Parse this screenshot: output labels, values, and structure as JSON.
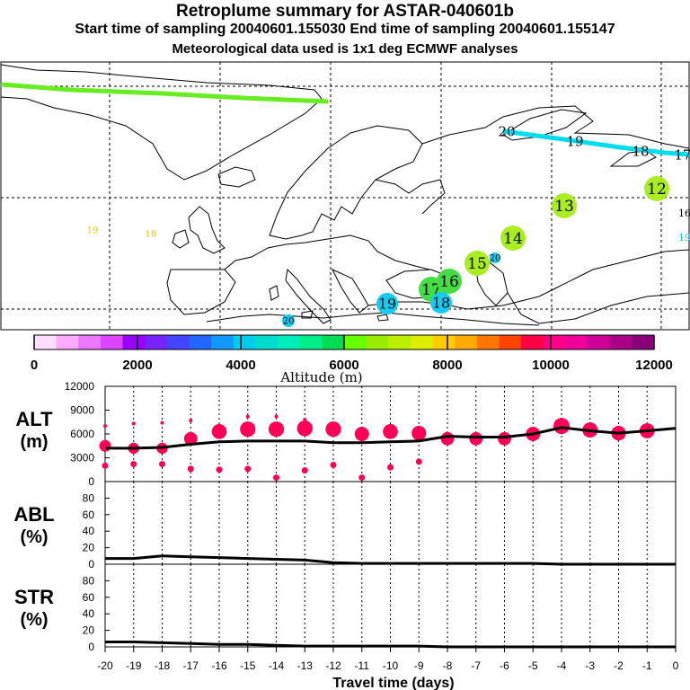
{
  "header": {
    "title": "Retroplume summary for ASTAR-040601b",
    "sampling": "Start time of sampling 20040601.155030     End time of sampling 20040601.155147",
    "meteo": "Meteorological data used is 1x1 deg ECMWF analyses"
  },
  "colors": {
    "green_track": "#66ee22",
    "cyan_track": "#00ddee",
    "marker_red": "#ff0055",
    "lime": "#aaee22",
    "green_mid": "#44dd44",
    "cyan": "#11ccee"
  },
  "map": {
    "labels": [
      {
        "text": "20",
        "kind": "plain"
      },
      {
        "text": "19",
        "kind": "plain"
      },
      {
        "text": "18",
        "kind": "plain"
      },
      {
        "text": "17",
        "kind": "plain"
      },
      {
        "text": "16",
        "kind": "plain"
      },
      {
        "text": "19",
        "kind": "plain"
      },
      {
        "text": "19",
        "kind": "plain"
      },
      {
        "text": "18",
        "kind": "plain"
      },
      {
        "text": "12",
        "kind": "circle"
      },
      {
        "text": "13",
        "kind": "circle"
      },
      {
        "text": "14",
        "kind": "circle"
      },
      {
        "text": "15",
        "kind": "circle"
      },
      {
        "text": "20",
        "kind": "small"
      },
      {
        "text": "17",
        "kind": "circle"
      },
      {
        "text": "16",
        "kind": "circle"
      },
      {
        "text": "19",
        "kind": "circle"
      },
      {
        "text": "18",
        "kind": "circle"
      },
      {
        "text": "20",
        "kind": "small"
      }
    ]
  },
  "colorbar": {
    "colors": [
      "#ffddff",
      "#ffaaff",
      "#ee77ff",
      "#dd44ff",
      "#9900ff",
      "#7722ff",
      "#4444ff",
      "#2266ff",
      "#1199ff",
      "#00ccee",
      "#00ddcc",
      "#00eebb",
      "#00ee88",
      "#00dd55",
      "#66ff00",
      "#99ee00",
      "#bbee00",
      "#ddee00",
      "#ffcc00",
      "#ffaa00",
      "#ff7700",
      "#ff4400",
      "#ff0044",
      "#ff0088",
      "#ee0099",
      "#cc0099",
      "#aa0088",
      "#880077"
    ],
    "tick_labels": [
      "0",
      "2000",
      "4000",
      "6000",
      "8000",
      "10000",
      "12000"
    ],
    "label": "Altitude (m)"
  },
  "chart_data": {
    "type": "line",
    "x": [
      -20,
      -19,
      -18,
      -17,
      -16,
      -15,
      -14,
      -13,
      -12,
      -11,
      -10,
      -9,
      -8,
      -7,
      -6,
      -5,
      -4,
      -3,
      -2,
      -1,
      0
    ],
    "xlabel": "Travel time (days)",
    "x_tick_labels": [
      "-20",
      "-19",
      "-18",
      "-17",
      "-16",
      "-15",
      "-14",
      "-13",
      "-12",
      "-11",
      "-10",
      "-9",
      "-8",
      "-7",
      "-6",
      "-5",
      "-4",
      "-3",
      "-2",
      "-1",
      "0"
    ],
    "xlim": [
      -20,
      0
    ],
    "panels": [
      {
        "name": "ALT",
        "ylabel": "ALT",
        "yunit": "(m)",
        "ylim": [
          0,
          12000
        ],
        "yticks": [
          "0",
          "3000",
          "6000",
          "9000",
          "12000"
        ],
        "mean": [
          4200,
          4200,
          4300,
          4700,
          5000,
          5100,
          5100,
          5100,
          4900,
          4900,
          5000,
          5100,
          5700,
          5600,
          5600,
          6000,
          6800,
          6400,
          6100,
          6400,
          6700
        ],
        "marker_major": [
          4500,
          4200,
          4200,
          5400,
          6300,
          6600,
          6600,
          6700,
          6600,
          6000,
          6300,
          6100,
          5400,
          5400,
          5400,
          6000,
          7000,
          6500,
          6100,
          6400,
          null
        ],
        "marker_upper": [
          7000,
          7300,
          7400,
          7700,
          null,
          8200,
          8200,
          7800,
          null,
          null,
          null,
          null,
          null,
          null,
          null,
          null,
          null,
          null,
          null,
          null,
          null
        ],
        "marker_lower": [
          2000,
          2200,
          2200,
          1600,
          1500,
          1600,
          500,
          1400,
          2100,
          500,
          1800,
          2500,
          null,
          null,
          null,
          null,
          null,
          null,
          null,
          null,
          null
        ]
      },
      {
        "name": "ABL",
        "ylabel": "ABL",
        "yunit": "(%)",
        "ylim": [
          0,
          100
        ],
        "yticks": [
          "0",
          "20",
          "40",
          "60",
          "80"
        ],
        "mean": [
          7,
          7,
          10,
          9,
          8,
          7,
          6,
          5,
          2,
          1,
          1,
          1,
          1,
          1,
          1,
          1,
          0,
          0,
          0,
          0,
          0
        ]
      },
      {
        "name": "STR",
        "ylabel": "STR",
        "yunit": "(%)",
        "ylim": [
          0,
          100
        ],
        "yticks": [
          "0",
          "20",
          "40",
          "60",
          "80"
        ],
        "mean": [
          6,
          6,
          5,
          4,
          3,
          3,
          2,
          1,
          1,
          1,
          1,
          1,
          0,
          0,
          0,
          0,
          0,
          0,
          0,
          0,
          0
        ]
      }
    ]
  }
}
